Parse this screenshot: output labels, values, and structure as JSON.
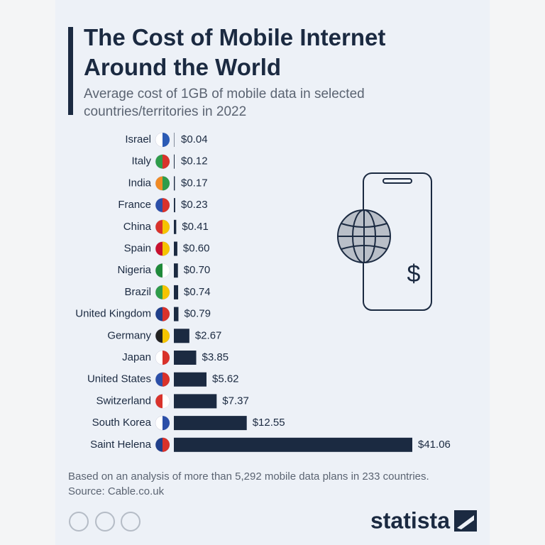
{
  "chart_data": {
    "type": "bar",
    "orientation": "horizontal",
    "title": "The Cost of Mobile Internet Around the World",
    "subtitle": "Average cost of 1GB of mobile data in selected countries/territories in 2022",
    "categories": [
      "Israel",
      "Italy",
      "India",
      "France",
      "China",
      "Spain",
      "Nigeria",
      "Brazil",
      "United Kingdom",
      "Germany",
      "Japan",
      "United States",
      "Switzerland",
      "South Korea",
      "Saint Helena"
    ],
    "values": [
      0.04,
      0.12,
      0.17,
      0.23,
      0.41,
      0.6,
      0.7,
      0.74,
      0.79,
      2.67,
      3.85,
      5.62,
      7.37,
      12.55,
      41.06
    ],
    "value_labels": [
      "$0.04",
      "$0.12",
      "$0.17",
      "$0.23",
      "$0.41",
      "$0.60",
      "$0.70",
      "$0.74",
      "$0.79",
      "$2.67",
      "$3.85",
      "$5.62",
      "$7.37",
      "$12.55",
      "$41.06"
    ],
    "color": "#1b2a41",
    "note": "Based on an analysis of more than 5,292 mobile data plans in 233 countries.",
    "source": "Source: Cable.co.uk"
  },
  "brand": "statista"
}
